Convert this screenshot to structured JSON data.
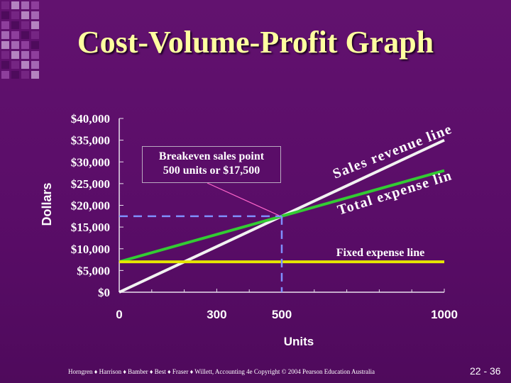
{
  "slide": {
    "title": "Cost-Volume-Profit Graph",
    "footer": "Horngren ♦ Harrison ♦ Bamber ♦ Best ♦ Fraser ♦ Willett, Accounting 4e Copyright © 2004 Pearson Education Australia",
    "page_number": "22 - 36"
  },
  "callout": {
    "line1": "Breakeven sales point",
    "line2": "500 units or $17,500"
  },
  "colors": {
    "sales_revenue": "#f2f2f2",
    "total_expense": "#33cc33",
    "fixed_expense": "#e6e600",
    "guides": "#7f8fff",
    "pointer": "#ff66cc"
  },
  "chart_data": {
    "type": "line",
    "xlabel": "Units",
    "ylabel": "Dollars",
    "xlim": [
      0,
      1000
    ],
    "ylim": [
      0,
      40000
    ],
    "x_ticks": [
      0,
      300,
      500,
      1000
    ],
    "y_ticks": [
      0,
      5000,
      10000,
      15000,
      20000,
      25000,
      30000,
      35000,
      40000
    ],
    "x_tick_labels": [
      "0",
      "300",
      "500",
      "1000"
    ],
    "y_tick_labels": [
      "$0",
      "$5,000",
      "$10,000",
      "$15,000",
      "$20,000",
      "$25,000",
      "$30,000",
      "$35,000",
      "$40,000"
    ],
    "series": [
      {
        "name": "Sales revenue line",
        "x": [
          0,
          1000
        ],
        "y": [
          0,
          35000
        ]
      },
      {
        "name": "Total expense line",
        "x": [
          0,
          1000
        ],
        "y": [
          7000,
          28000
        ]
      },
      {
        "name": "Fixed expense line",
        "x": [
          0,
          1000
        ],
        "y": [
          7000,
          7000
        ]
      }
    ],
    "breakeven": {
      "units": 500,
      "dollars": 17500
    }
  }
}
